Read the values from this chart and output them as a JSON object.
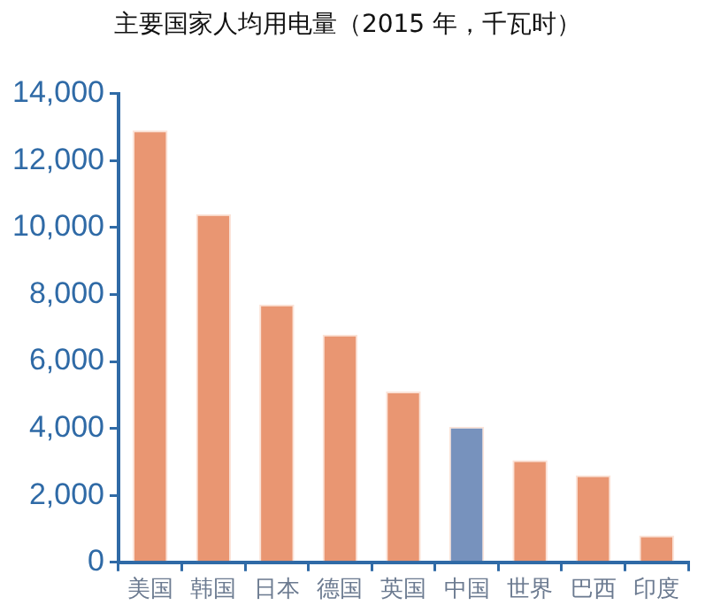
{
  "chart_data": {
    "type": "bar",
    "title": "主要国家人均用电量（2015 年，千瓦时）",
    "categories": [
      "美国",
      "韩国",
      "日本",
      "德国",
      "英国",
      "中国",
      "世界",
      "巴西",
      "印度"
    ],
    "values": [
      12900,
      10400,
      7700,
      6800,
      5100,
      4050,
      3050,
      2600,
      800
    ],
    "colors": [
      "#e99672",
      "#e99672",
      "#e99672",
      "#e99672",
      "#e99672",
      "#7792bd",
      "#e99672",
      "#e99672",
      "#e99672"
    ],
    "ylim": [
      0,
      14000
    ],
    "yticks": [
      0,
      {
        "value": 2000,
        "label": "2,000"
      },
      {
        "value": 4000,
        "label": "4,000"
      },
      {
        "value": 6000,
        "label": "6,000"
      },
      {
        "value": 8000,
        "label": "8,000"
      },
      {
        "value": 10000,
        "label": "10,000"
      },
      {
        "value": 12000,
        "label": "12,000"
      },
      {
        "value": 14000,
        "label": "14,000"
      }
    ],
    "grid": false,
    "legend": false
  }
}
